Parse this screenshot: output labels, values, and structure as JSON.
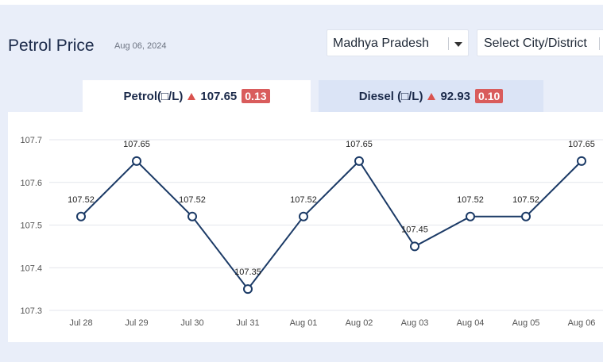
{
  "header": {
    "title": "Petrol Price",
    "date": "Aug 06, 2024"
  },
  "filters": {
    "state": "Madhya Pradesh",
    "city_placeholder": "Select City/District"
  },
  "tabs": [
    {
      "label": "Petrol(□/L)",
      "price": "107.65",
      "change": "0.13"
    },
    {
      "label": "Diesel (□/L)",
      "price": "92.93",
      "change": "0.10"
    }
  ],
  "colors": {
    "line": "#1b3a66",
    "up_arrow": "#d9534f",
    "badge": "#d95c5c"
  },
  "chart_data": {
    "type": "line",
    "categories": [
      "Jul 28",
      "Jul 29",
      "Jul 30",
      "Jul 31",
      "Aug 01",
      "Aug 02",
      "Aug 03",
      "Aug 04",
      "Aug 05",
      "Aug 06"
    ],
    "values": [
      107.52,
      107.65,
      107.52,
      107.35,
      107.52,
      107.65,
      107.45,
      107.52,
      107.52,
      107.65
    ],
    "value_labels": [
      "107.52",
      "107.65",
      "107.52",
      "107.35",
      "107.52",
      "107.65",
      "107.45",
      "107.52",
      "107.52",
      "107.65"
    ],
    "yticks": [
      "107.3",
      "107.4",
      "107.5",
      "107.6",
      "107.7"
    ],
    "ylim": [
      107.3,
      107.7
    ],
    "grid": true
  }
}
